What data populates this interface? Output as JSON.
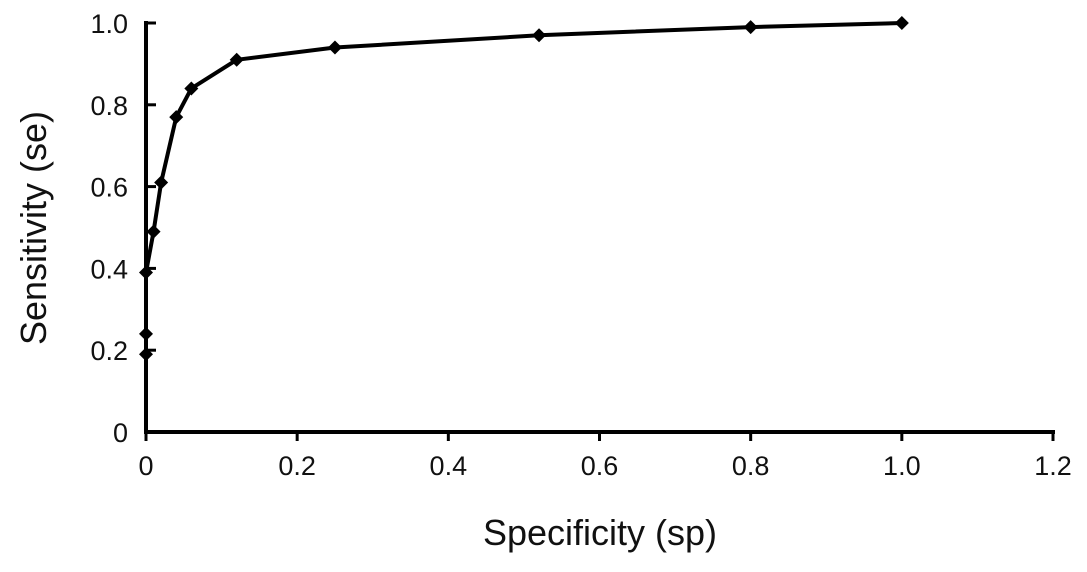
{
  "chart_data": {
    "type": "line",
    "title": "",
    "xlabel": "Specificity (sp)",
    "ylabel": "Sensitivity (se)",
    "xlim": [
      0,
      1.2
    ],
    "ylim": [
      0,
      1.0
    ],
    "x_ticks": [
      "0",
      "0.2",
      "0.4",
      "0.6",
      "0.8",
      "1.0",
      "1.2"
    ],
    "y_ticks": [
      "0",
      "0.2",
      "0.4",
      "0.6",
      "0.8",
      "1.0"
    ],
    "grid": false,
    "marker": "diamond",
    "line_color": "#000000",
    "series": [
      {
        "x": [
          0,
          0,
          0,
          0.01,
          0.02,
          0.04,
          0.06,
          0.12,
          0.25,
          0.52,
          0.8,
          1.0
        ],
        "y": [
          0.19,
          0.24,
          0.39,
          0.49,
          0.61,
          0.77,
          0.84,
          0.91,
          0.94,
          0.97,
          0.99,
          1.0
        ]
      }
    ]
  }
}
